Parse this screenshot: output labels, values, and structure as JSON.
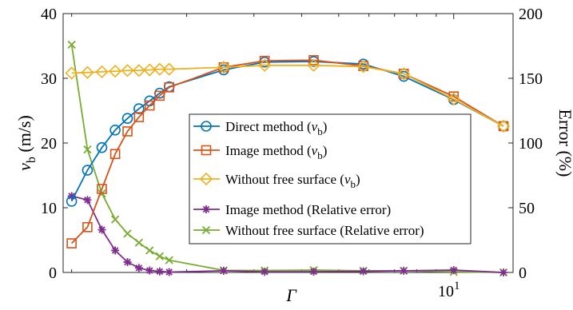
{
  "chart_data": {
    "type": "line",
    "xlabel": "Γ",
    "x_scale": "log",
    "x_tick_labels": [
      "10¹"
    ],
    "left_axis": {
      "label_var": "v",
      "label_sub": "b",
      "label_unit": " (m/s)",
      "ylim": [
        0,
        40
      ],
      "ticks": [
        "0",
        "10",
        "20",
        "30",
        "40"
      ]
    },
    "right_axis": {
      "label": "Error (%)",
      "ylim": [
        0,
        200
      ],
      "ticks": [
        "0",
        "50",
        "100",
        "150",
        "200"
      ]
    },
    "series": [
      {
        "name": "Direct method (v_b)",
        "legend_text": "Direct method (",
        "legend_var": "v",
        "legend_sub": "b",
        "legend_tail": ")",
        "axis": "left",
        "color": "#0072BD",
        "marker": "circle",
        "x": [
          1.0,
          1.1,
          1.2,
          1.3,
          1.4,
          1.5,
          1.6,
          1.7,
          1.8,
          2.5,
          3.2,
          4.3,
          5.8,
          7.4,
          10.0,
          13.5
        ],
        "y": [
          11.0,
          15.8,
          19.3,
          22.0,
          23.8,
          25.3,
          26.5,
          27.7,
          28.7,
          31.3,
          32.5,
          32.6,
          32.2,
          30.3,
          26.7,
          22.6
        ]
      },
      {
        "name": "Image method (v_b)",
        "legend_text": "Image method (",
        "legend_var": "v",
        "legend_sub": "b",
        "legend_tail": ")",
        "axis": "left",
        "color": "#D95319",
        "marker": "square",
        "x": [
          1.0,
          1.1,
          1.2,
          1.3,
          1.4,
          1.5,
          1.6,
          1.7,
          1.8,
          2.5,
          3.2,
          4.3,
          5.8,
          7.4,
          10.0,
          13.5
        ],
        "y": [
          4.5,
          7.0,
          12.9,
          18.3,
          21.8,
          24.0,
          25.8,
          27.3,
          28.6,
          31.7,
          32.7,
          32.8,
          31.9,
          30.7,
          27.2,
          22.6
        ]
      },
      {
        "name": "Without free surface (v_b)",
        "legend_text": "Without free surface (",
        "legend_var": "v",
        "legend_sub": "b",
        "legend_tail": ")",
        "axis": "left",
        "color": "#EDB120",
        "marker": "diamond",
        "x": [
          1.0,
          1.1,
          1.2,
          1.3,
          1.4,
          1.5,
          1.6,
          1.7,
          1.8,
          2.5,
          3.2,
          4.3,
          5.8,
          7.4,
          10.0,
          13.5
        ],
        "y": [
          30.8,
          30.9,
          31.0,
          31.1,
          31.2,
          31.2,
          31.3,
          31.4,
          31.4,
          31.7,
          32.0,
          32.0,
          31.8,
          30.7,
          26.8,
          22.6
        ]
      },
      {
        "name": "Image method (Relative error)",
        "legend_text": "Image method (Relative error)",
        "axis": "right",
        "color": "#7E2F8E",
        "marker": "star",
        "x": [
          1.0,
          1.1,
          1.2,
          1.3,
          1.4,
          1.5,
          1.6,
          1.7,
          1.8,
          2.5,
          3.2,
          4.3,
          5.8,
          7.4,
          10.0,
          13.5
        ],
        "y": [
          59.0,
          56.0,
          33.0,
          17.0,
          8.0,
          3.5,
          1.5,
          0.8,
          0.3,
          1.3,
          0.5,
          0.6,
          0.9,
          1.3,
          1.8,
          0.0
        ]
      },
      {
        "name": "Without free surface (Relative error)",
        "legend_text": "Without free surface (Relative error)",
        "axis": "right",
        "color": "#77AC30",
        "marker": "x",
        "x": [
          1.0,
          1.1,
          1.2,
          1.3,
          1.4,
          1.5,
          1.6,
          1.7,
          1.8,
          2.5,
          3.2,
          4.3,
          5.8,
          7.4,
          10.0,
          13.5
        ],
        "y": [
          176.0,
          95.0,
          61.0,
          41.0,
          30.0,
          23.0,
          17.0,
          12.5,
          9.5,
          1.6,
          1.5,
          1.8,
          1.3,
          1.3,
          0.5,
          0.0
        ]
      }
    ],
    "legend_placement": "center-right",
    "grid": false
  }
}
